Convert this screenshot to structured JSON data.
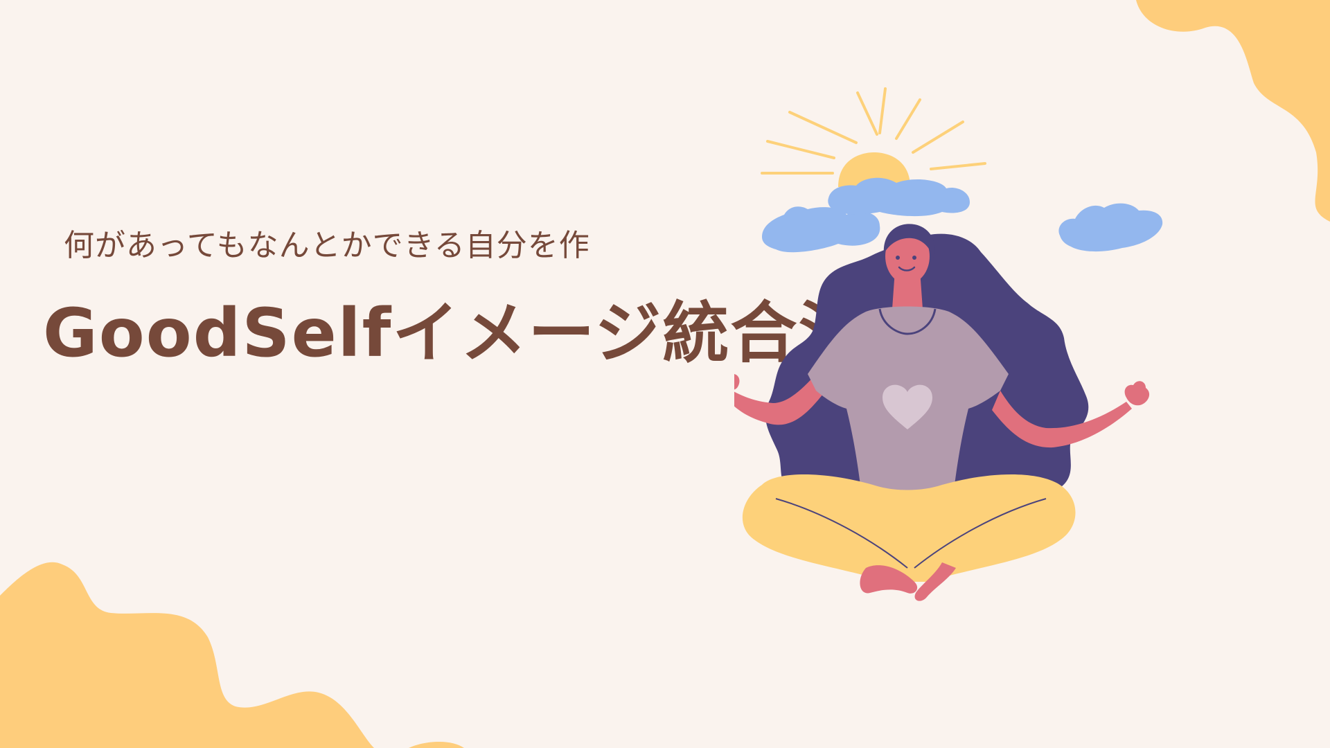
{
  "slide": {
    "subtitle": "何があってもなんとかできる自分を作",
    "title": "GoodSelfイメージ統合法"
  },
  "colors": {
    "background": "#faf3ee",
    "blob": "#fecd7c",
    "text": "#76493a",
    "cloud": "#93b7ee",
    "sun": "#fdd17a",
    "hair": "#4b437c",
    "skin": "#e0707d",
    "shirt": "#b39bad",
    "heart": "#d8c6d2",
    "pants": "#fdd17a"
  },
  "illustration": {
    "subject": "meditating-woman-illustration",
    "icons": [
      "sun-icon",
      "cloud-icon",
      "heart-icon"
    ]
  }
}
